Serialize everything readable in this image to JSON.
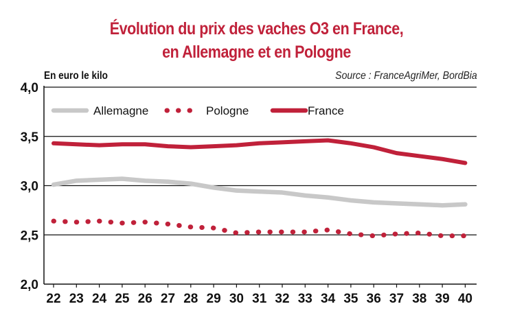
{
  "chart_data": {
    "type": "line",
    "title_line_1": "Évolution du prix des vaches O3 en France,",
    "title_line_2": "en Allemagne et en Pologne",
    "unit_label": "En euro le kilo",
    "source": "Source : FranceAgriMer, BordBia",
    "x": [
      22,
      23,
      24,
      25,
      26,
      27,
      28,
      29,
      30,
      31,
      32,
      33,
      34,
      35,
      36,
      37,
      38,
      39,
      40
    ],
    "x_tick_labels": [
      "22",
      "23",
      "24",
      "25",
      "26",
      "27",
      "28",
      "29",
      "30",
      "31",
      "32",
      "33",
      "34",
      "35",
      "36",
      "37",
      "38",
      "39",
      "40"
    ],
    "y_tick_labels": [
      "4,0",
      "3,5",
      "3,0",
      "2,5",
      "2,0"
    ],
    "y_ticks": [
      4.0,
      3.5,
      3.0,
      2.5,
      2.0
    ],
    "ylim": [
      2.0,
      4.0
    ],
    "grid": "horizontal",
    "legend_position": "top-left",
    "series": [
      {
        "name": "Allemagne",
        "color": "#c8c8c8",
        "style": "solid",
        "values": [
          3.01,
          3.05,
          3.06,
          3.07,
          3.05,
          3.04,
          3.02,
          2.98,
          2.95,
          2.94,
          2.93,
          2.9,
          2.88,
          2.85,
          2.83,
          2.82,
          2.81,
          2.8,
          2.81
        ]
      },
      {
        "name": "Pologne",
        "color": "#c0213a",
        "style": "dotted",
        "values": [
          2.64,
          2.63,
          2.64,
          2.62,
          2.63,
          2.61,
          2.58,
          2.57,
          2.52,
          2.53,
          2.53,
          2.53,
          2.55,
          2.51,
          2.49,
          2.51,
          2.52,
          2.49,
          2.49
        ]
      },
      {
        "name": "France",
        "color": "#c0213a",
        "style": "solid",
        "values": [
          3.43,
          3.42,
          3.41,
          3.42,
          3.42,
          3.4,
          3.39,
          3.4,
          3.41,
          3.43,
          3.44,
          3.45,
          3.46,
          3.43,
          3.39,
          3.33,
          3.3,
          3.27,
          3.23
        ]
      }
    ]
  }
}
